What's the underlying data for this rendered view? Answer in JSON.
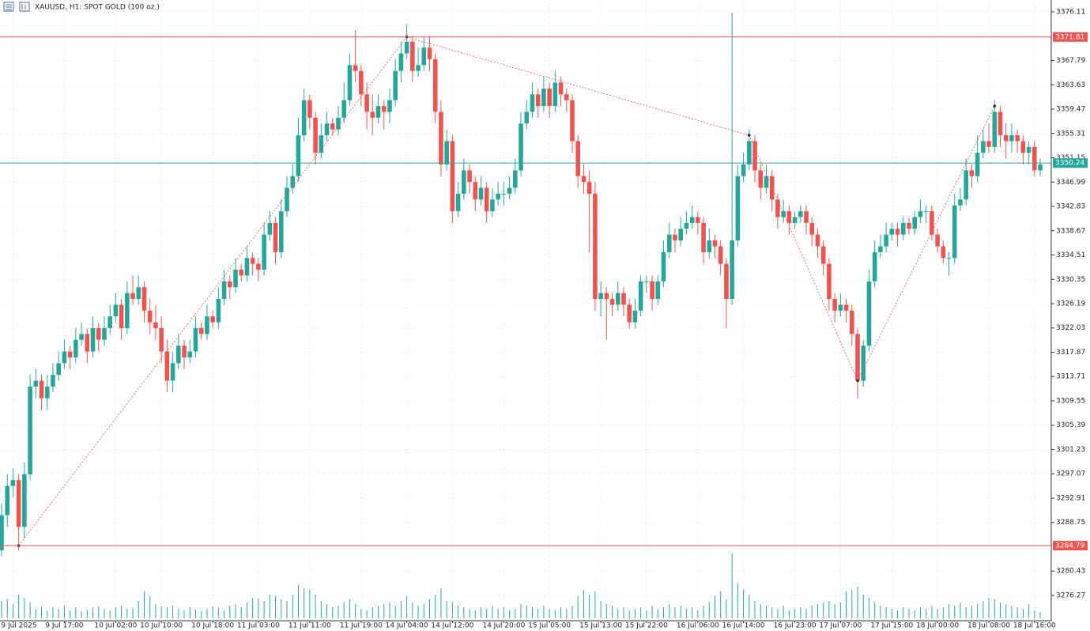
{
  "chart_data": {
    "type": "candlestick",
    "title": "XAUUSD, H1:  SPOT GOLD (100 oz.)",
    "up_color": "#26a69a",
    "down_color": "#ef5350",
    "volume_color": "#26a69a",
    "grid": true,
    "ylim": [
      3271.94,
      3378.14
    ],
    "yticks": [
      3376.11,
      3367.79,
      3363.63,
      3359.47,
      3355.31,
      3351.15,
      3346.99,
      3342.83,
      3338.67,
      3334.51,
      3330.35,
      3326.19,
      3322.03,
      3317.87,
      3313.71,
      3309.55,
      3305.39,
      3301.23,
      3297.07,
      3292.91,
      3288.75,
      3280.43,
      3276.27
    ],
    "xticks": [
      {
        "value": 2,
        "label": "9 Jul 2025"
      },
      {
        "value": 11,
        "label": "9 Jul 17:00"
      },
      {
        "value": 20,
        "label": "10 Jul 02:00"
      },
      {
        "value": 28,
        "label": "10 Jul 10:00"
      },
      {
        "value": 37,
        "label": "10 Jul 18:00"
      },
      {
        "value": 45,
        "label": "11 Jul 03:00"
      },
      {
        "value": 54,
        "label": "11 Jul 11:00"
      },
      {
        "value": 63,
        "label": "11 Jul 19:00"
      },
      {
        "value": 71,
        "label": "14 Jul 04:00"
      },
      {
        "value": 79,
        "label": "14 Jul 12:00"
      },
      {
        "value": 88,
        "label": "14 Jul 20:00"
      },
      {
        "value": 96,
        "label": "15 Jul 05:00"
      },
      {
        "value": 105,
        "label": "15 Jul 13:00"
      },
      {
        "value": 113,
        "label": "15 Jul 22:00"
      },
      {
        "value": 122,
        "label": "16 Jul 06:00"
      },
      {
        "value": 130,
        "label": "16 Jul 14:00"
      },
      {
        "value": 139,
        "label": "16 Jul 23:00"
      },
      {
        "value": 147,
        "label": "17 Jul 07:00"
      },
      {
        "value": 156,
        "label": "17 Jul 15:00"
      },
      {
        "value": 164,
        "label": "18 Jul 00:00"
      },
      {
        "value": 173,
        "label": "18 Jul 08:00"
      },
      {
        "value": 181,
        "label": "18 Jul 16:00"
      }
    ],
    "price_lines": [
      {
        "value": 3371.81,
        "color": "#ef5350"
      },
      {
        "value": 3284.79,
        "color": "#ef5350"
      },
      {
        "value": 3350.24,
        "color": "#26a69a"
      }
    ],
    "zigzag": {
      "color": "#ef5350",
      "x": [
        3,
        71,
        131,
        150,
        174
      ],
      "values": [
        3284.79,
        3371.81,
        3355,
        3313,
        3360
      ]
    },
    "candles": [
      [
        3284,
        3292,
        3283,
        3290
      ],
      [
        3290,
        3297,
        3288,
        3295
      ],
      [
        3295,
        3298,
        3293,
        3296
      ],
      [
        3296,
        3297,
        3284,
        3288
      ],
      [
        3288,
        3299,
        3286,
        3297
      ],
      [
        3297,
        3314,
        3296,
        3312
      ],
      [
        3312,
        3315,
        3310,
        3313
      ],
      [
        3313,
        3314,
        3308,
        3310
      ],
      [
        3310,
        3314,
        3308,
        3312
      ],
      [
        3312,
        3316,
        3311,
        3314
      ],
      [
        3314,
        3318,
        3313,
        3316
      ],
      [
        3316,
        3320,
        3315,
        3318
      ],
      [
        3318,
        3319,
        3315,
        3317
      ],
      [
        3317,
        3322,
        3316,
        3320
      ],
      [
        3320,
        3323,
        3319,
        3321
      ],
      [
        3321,
        3322,
        3316,
        3318
      ],
      [
        3318,
        3324,
        3317,
        3322
      ],
      [
        3322,
        3323,
        3318,
        3320
      ],
      [
        3320,
        3324,
        3319,
        3322
      ],
      [
        3322,
        3326,
        3321,
        3324
      ],
      [
        3324,
        3328,
        3323,
        3326
      ],
      [
        3326,
        3327,
        3320,
        3322
      ],
      [
        3322,
        3330,
        3321,
        3328
      ],
      [
        3328,
        3331,
        3326,
        3327
      ],
      [
        3327,
        3331,
        3326,
        3329
      ],
      [
        3329,
        3330,
        3323,
        3325
      ],
      [
        3325,
        3327,
        3321,
        3323
      ],
      [
        3323,
        3326,
        3320,
        3322
      ],
      [
        3322,
        3324,
        3316,
        3318
      ],
      [
        3318,
        3320,
        3311,
        3313
      ],
      [
        3313,
        3318,
        3311,
        3316
      ],
      [
        3316,
        3321,
        3315,
        3319
      ],
      [
        3319,
        3320,
        3315,
        3317
      ],
      [
        3317,
        3320,
        3316,
        3318
      ],
      [
        3318,
        3324,
        3317,
        3322
      ],
      [
        3322,
        3323,
        3320,
        3321
      ],
      [
        3321,
        3326,
        3320,
        3324
      ],
      [
        3324,
        3325,
        3322,
        3323
      ],
      [
        3323,
        3329,
        3322,
        3327
      ],
      [
        3327,
        3332,
        3326,
        3330
      ],
      [
        3330,
        3331,
        3327,
        3329
      ],
      [
        3329,
        3334,
        3328,
        3332
      ],
      [
        3332,
        3333,
        3330,
        3331
      ],
      [
        3331,
        3336,
        3330,
        3334
      ],
      [
        3334,
        3335,
        3331,
        3333
      ],
      [
        3333,
        3334,
        3330,
        3332
      ],
      [
        3332,
        3340,
        3331,
        3338
      ],
      [
        3338,
        3342,
        3337,
        3340
      ],
      [
        3340,
        3341,
        3333,
        3335
      ],
      [
        3335,
        3344,
        3334,
        3342
      ],
      [
        3342,
        3348,
        3341,
        3346
      ],
      [
        3346,
        3350,
        3345,
        3348
      ],
      [
        3348,
        3358,
        3347,
        3355
      ],
      [
        3355,
        3363,
        3354,
        3361
      ],
      [
        3361,
        3362,
        3356,
        3358
      ],
      [
        3358,
        3359,
        3350,
        3352
      ],
      [
        3352,
        3357,
        3351,
        3355
      ],
      [
        3355,
        3359,
        3354,
        3357
      ],
      [
        3357,
        3358,
        3355,
        3356
      ],
      [
        3356,
        3360,
        3355,
        3358
      ],
      [
        3358,
        3364,
        3357,
        3361
      ],
      [
        3361,
        3369,
        3360,
        3367
      ],
      [
        3367,
        3373,
        3364,
        3366
      ],
      [
        3366,
        3367,
        3360,
        3362
      ],
      [
        3362,
        3364,
        3356,
        3359
      ],
      [
        3359,
        3362,
        3355,
        3358
      ],
      [
        3358,
        3362,
        3357,
        3360
      ],
      [
        3360,
        3361,
        3356,
        3359
      ],
      [
        3359,
        3363,
        3357,
        3361
      ],
      [
        3361,
        3368,
        3360,
        3366
      ],
      [
        3366,
        3371,
        3364,
        3369
      ],
      [
        3369,
        3374,
        3368,
        3371
      ],
      [
        3371,
        3372,
        3364,
        3366
      ],
      [
        3366,
        3370,
        3365,
        3367
      ],
      [
        3367,
        3372,
        3366,
        3370
      ],
      [
        3370,
        3372,
        3366,
        3368
      ],
      [
        3368,
        3369,
        3357,
        3359
      ],
      [
        3359,
        3361,
        3348,
        3350
      ],
      [
        3350,
        3356,
        3349,
        3354
      ],
      [
        3354,
        3355,
        3340,
        3342
      ],
      [
        3342,
        3347,
        3341,
        3345
      ],
      [
        3345,
        3351,
        3344,
        3349
      ],
      [
        3349,
        3350,
        3345,
        3347
      ],
      [
        3347,
        3348,
        3342,
        3344
      ],
      [
        3344,
        3348,
        3343,
        3346
      ],
      [
        3346,
        3347,
        3340,
        3342
      ],
      [
        3342,
        3346,
        3341,
        3344
      ],
      [
        3344,
        3347,
        3343,
        3345
      ],
      [
        3345,
        3347,
        3343,
        3345
      ],
      [
        3345,
        3348,
        3344,
        3346
      ],
      [
        3346,
        3351,
        3345,
        3349
      ],
      [
        3349,
        3359,
        3348,
        3357
      ],
      [
        3357,
        3361,
        3356,
        3359
      ],
      [
        3359,
        3364,
        3358,
        3362
      ],
      [
        3362,
        3363,
        3358,
        3360
      ],
      [
        3360,
        3365,
        3359,
        3363
      ],
      [
        3363,
        3364,
        3358,
        3360
      ],
      [
        3360,
        3366,
        3359,
        3364
      ],
      [
        3364,
        3365,
        3360,
        3362
      ],
      [
        3362,
        3363,
        3359,
        3361
      ],
      [
        3361,
        3362,
        3352,
        3354
      ],
      [
        3354,
        3355,
        3346,
        3348
      ],
      [
        3348,
        3350,
        3345,
        3347
      ],
      [
        3347,
        3349,
        3335,
        3345
      ],
      [
        3345,
        3347,
        3325,
        3327
      ],
      [
        3327,
        3330,
        3324,
        3328
      ],
      [
        3328,
        3329,
        3320,
        3327
      ],
      [
        3327,
        3328,
        3324,
        3326
      ],
      [
        3326,
        3330,
        3325,
        3328
      ],
      [
        3328,
        3329,
        3324,
        3326
      ],
      [
        3326,
        3327,
        3322,
        3323
      ],
      [
        3323,
        3327,
        3322,
        3325
      ],
      [
        3325,
        3331,
        3324,
        3330
      ],
      [
        3330,
        3331,
        3328,
        3330
      ],
      [
        3330,
        3331,
        3325,
        3327
      ],
      [
        3327,
        3331,
        3326,
        3330
      ],
      [
        3330,
        3337,
        3329,
        3335
      ],
      [
        3335,
        3340,
        3334,
        3338
      ],
      [
        3338,
        3339,
        3335,
        3337
      ],
      [
        3337,
        3341,
        3336,
        3339
      ],
      [
        3339,
        3342,
        3338,
        3340
      ],
      [
        3340,
        3343,
        3339,
        3341
      ],
      [
        3341,
        3342,
        3338,
        3340
      ],
      [
        3340,
        3341,
        3333,
        3335
      ],
      [
        3335,
        3339,
        3334,
        3337
      ],
      [
        3337,
        3338,
        3334,
        3336
      ],
      [
        3336,
        3337,
        3331,
        3333
      ],
      [
        3333,
        3334,
        3322,
        3327
      ],
      [
        3327,
        3376,
        3326,
        3337
      ],
      [
        3337,
        3350,
        3336,
        3348
      ],
      [
        3348,
        3352,
        3347,
        3350
      ],
      [
        3350,
        3356,
        3349,
        3354
      ],
      [
        3354,
        3355,
        3347,
        3349
      ],
      [
        3349,
        3350,
        3344,
        3346
      ],
      [
        3346,
        3350,
        3345,
        3348
      ],
      [
        3348,
        3349,
        3342,
        3344
      ],
      [
        3344,
        3345,
        3339,
        3341
      ],
      [
        3341,
        3344,
        3340,
        3342
      ],
      [
        3342,
        3343,
        3338,
        3340
      ],
      [
        3340,
        3342,
        3339,
        3341
      ],
      [
        3341,
        3343,
        3340,
        3342
      ],
      [
        3342,
        3343,
        3338,
        3340
      ],
      [
        3340,
        3341,
        3336,
        3338
      ],
      [
        3338,
        3339,
        3334,
        3336
      ],
      [
        3336,
        3337,
        3331,
        3333
      ],
      [
        3333,
        3334,
        3325,
        3327
      ],
      [
        3327,
        3328,
        3323,
        3325
      ],
      [
        3325,
        3328,
        3324,
        3326
      ],
      [
        3326,
        3327,
        3323,
        3325
      ],
      [
        3325,
        3326,
        3319,
        3321
      ],
      [
        3321,
        3322,
        3310,
        3313
      ],
      [
        3313,
        3320,
        3312,
        3319
      ],
      [
        3319,
        3332,
        3318,
        3330
      ],
      [
        3330,
        3337,
        3329,
        3335
      ],
      [
        3335,
        3338,
        3334,
        3336
      ],
      [
        3336,
        3340,
        3335,
        3338
      ],
      [
        3338,
        3340,
        3337,
        3339
      ],
      [
        3339,
        3340,
        3336,
        3338
      ],
      [
        3338,
        3341,
        3337,
        3340
      ],
      [
        3340,
        3341,
        3338,
        3339
      ],
      [
        3339,
        3342,
        3338,
        3341
      ],
      [
        3341,
        3344,
        3340,
        3342
      ],
      [
        3342,
        3343,
        3340,
        3342
      ],
      [
        3342,
        3343,
        3337,
        3338
      ],
      [
        3338,
        3339,
        3335,
        3336
      ],
      [
        3336,
        3337,
        3333,
        3334
      ],
      [
        3334,
        3335,
        3331,
        3334
      ],
      [
        3334,
        3345,
        3333,
        3343
      ],
      [
        3343,
        3346,
        3342,
        3344
      ],
      [
        3344,
        3351,
        3343,
        3349
      ],
      [
        3349,
        3350,
        3346,
        3348
      ],
      [
        3348,
        3355,
        3347,
        3352
      ],
      [
        3352,
        3356,
        3351,
        3354
      ],
      [
        3354,
        3357,
        3352,
        3353
      ],
      [
        3353,
        3361,
        3352,
        3359
      ],
      [
        3359,
        3360,
        3353,
        3355
      ],
      [
        3355,
        3357,
        3351,
        3354
      ],
      [
        3354,
        3357,
        3352,
        3355
      ],
      [
        3355,
        3356,
        3352,
        3354
      ],
      [
        3354,
        3355,
        3350,
        3352
      ],
      [
        3352,
        3354,
        3350,
        3353
      ],
      [
        3353,
        3354,
        3348,
        3349
      ],
      [
        3349,
        3351,
        3348,
        3350
      ]
    ],
    "volumes": [
      22,
      25,
      18,
      30,
      26,
      20,
      12,
      15,
      10,
      14,
      12,
      16,
      10,
      14,
      9,
      11,
      13,
      15,
      12,
      10,
      14,
      16,
      12,
      13,
      22,
      34,
      28,
      18,
      15,
      14,
      16,
      12,
      10,
      14,
      11,
      9,
      12,
      15,
      13,
      10,
      16,
      18,
      14,
      20,
      26,
      25,
      22,
      30,
      28,
      24,
      22,
      30,
      42,
      38,
      36,
      30,
      22,
      18,
      14,
      16,
      20,
      24,
      18,
      12,
      10,
      14,
      16,
      18,
      20,
      16,
      22,
      28,
      20,
      16,
      18,
      24,
      30,
      38,
      22,
      20,
      16,
      14,
      12,
      10,
      14,
      12,
      16,
      12,
      14,
      10,
      12,
      18,
      16,
      14,
      12,
      16,
      12,
      10,
      14,
      12,
      16,
      28,
      36,
      30,
      34,
      22,
      18,
      16,
      12,
      14,
      10,
      12,
      14,
      10,
      16,
      12,
      14,
      18,
      14,
      16,
      12,
      14,
      10,
      16,
      20,
      28,
      34,
      24,
      82,
      44,
      36,
      30,
      22,
      18,
      16,
      14,
      12,
      16,
      10,
      12,
      14,
      12,
      16,
      18,
      20,
      22,
      18,
      20,
      34,
      36,
      40,
      30,
      26,
      20,
      16,
      14,
      12,
      10,
      14,
      12,
      10,
      14,
      12,
      16,
      12,
      14,
      18,
      16,
      20,
      14,
      16,
      18,
      22,
      26,
      24,
      20,
      18,
      16,
      14,
      12,
      18,
      10,
      8
    ]
  }
}
